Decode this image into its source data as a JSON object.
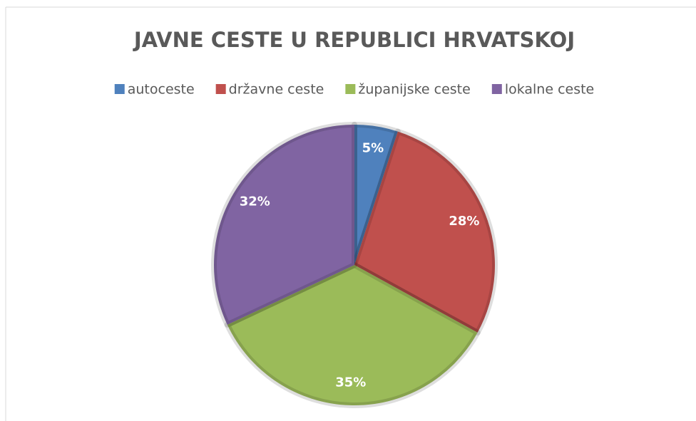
{
  "chart_data": {
    "type": "pie",
    "title": "JAVNE CESTE U REPUBLICI HRVATSKOJ",
    "categories": [
      "autoceste",
      "državne ceste",
      "županijske ceste",
      "lokalne ceste"
    ],
    "values": [
      5,
      28,
      35,
      32
    ],
    "value_labels": [
      "5%",
      "28%",
      "35%",
      "32%"
    ],
    "colors": [
      "#4f81bd",
      "#c0504d",
      "#9bbb59",
      "#8064a2"
    ],
    "legend": "top"
  }
}
